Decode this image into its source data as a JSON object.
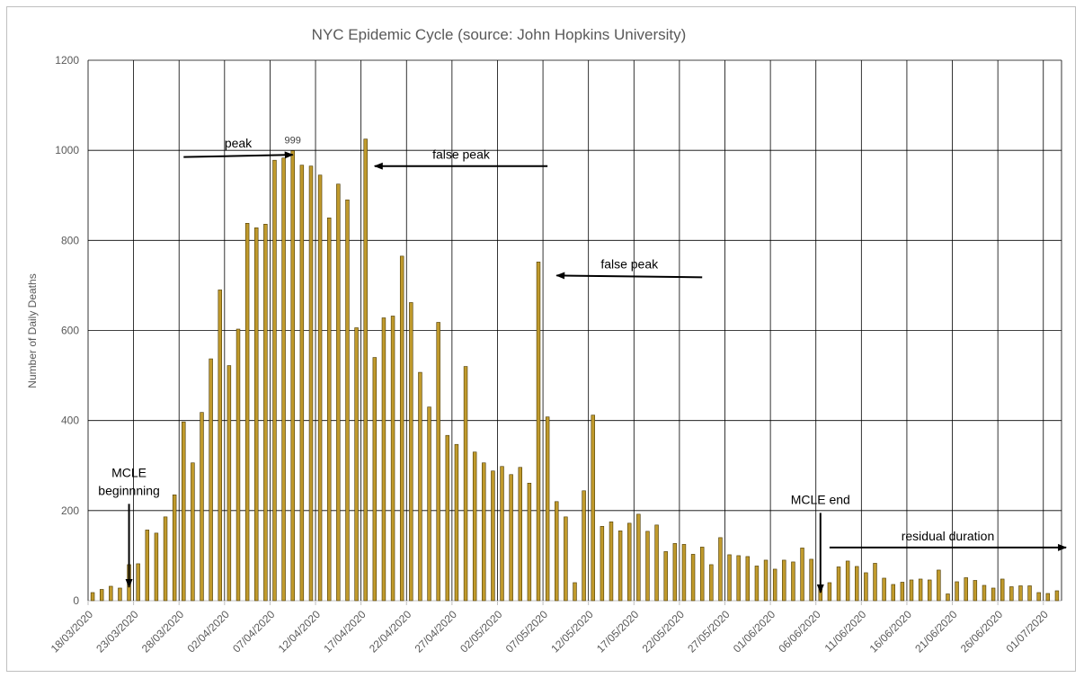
{
  "chart_data": {
    "type": "bar",
    "title": "NYC Epidemic Cycle (source: John Hopkins University)",
    "ylabel": "Number of Daily Deaths",
    "xlabel": "",
    "ylim": [
      0,
      1200
    ],
    "yticks": [
      0,
      200,
      400,
      600,
      800,
      1000,
      1200
    ],
    "grid": true,
    "legend": "none",
    "bar_color": "#c09a2c",
    "bar_edge_color": "#4a3800",
    "start_date": "18/03/2020",
    "tick_labels": [
      "18/03/2020",
      "23/03/2020",
      "28/03/2020",
      "02/04/2020",
      "07/04/2020",
      "12/04/2020",
      "17/04/2020",
      "22/04/2020",
      "27/04/2020",
      "02/05/2020",
      "07/05/2020",
      "12/05/2020",
      "17/05/2020",
      "22/05/2020",
      "27/05/2020",
      "01/06/2020",
      "06/06/2020",
      "11/06/2020",
      "16/06/2020",
      "21/06/2020",
      "26/06/2020",
      "01/07/2020"
    ],
    "values": [
      18,
      25,
      32,
      28,
      80,
      82,
      157,
      150,
      186,
      235,
      397,
      306,
      418,
      537,
      690,
      522,
      603,
      838,
      828,
      836,
      978,
      983,
      999,
      967,
      965,
      945,
      850,
      925,
      890,
      606,
      1025,
      540,
      628,
      632,
      765,
      662,
      507,
      430,
      618,
      367,
      347,
      520,
      330,
      306,
      288,
      298,
      280,
      296,
      261,
      752,
      408,
      220,
      186,
      40,
      244,
      412,
      165,
      175,
      155,
      172,
      192,
      154,
      168,
      109,
      127,
      125,
      103,
      119,
      80,
      140,
      102,
      100,
      98,
      77,
      90,
      70,
      90,
      86,
      117,
      92,
      29,
      40,
      75,
      88,
      76,
      62,
      83,
      50,
      36,
      41,
      46,
      48,
      46,
      68,
      15,
      42,
      51,
      45,
      34,
      28,
      48,
      31,
      33,
      33,
      18,
      16,
      22
    ],
    "data_labels": [
      {
        "index": 22,
        "text": "999"
      }
    ],
    "annotations": [
      {
        "text": "peak",
        "from": {
          "date": "28/03/2020",
          "y": 985
        },
        "to": {
          "date": "09/04/2020",
          "y": 990
        }
      },
      {
        "text": "false peak",
        "from": {
          "date": "07/05/2020",
          "y": 965
        },
        "to": {
          "date": "18/04/2020",
          "y": 965
        }
      },
      {
        "text": "false peak",
        "from": {
          "date": "24/05/2020",
          "y": 718
        },
        "to": {
          "date": "08/05/2020",
          "y": 722
        }
      },
      {
        "text": "MCLE",
        "text2": "beginnning",
        "from": {
          "date": "22/03/2020",
          "y": 215
        },
        "to": {
          "date": "22/03/2020",
          "y": 30
        }
      },
      {
        "text": "MCLE end",
        "from": {
          "date": "06/06/2020",
          "y": 195
        },
        "to": {
          "date": "06/06/2020",
          "y": 18
        }
      },
      {
        "text": "residual duration",
        "from": {
          "date": "07/06/2020",
          "y": 118
        },
        "to": {
          "date": "03/07/2020",
          "y": 118
        }
      }
    ]
  }
}
